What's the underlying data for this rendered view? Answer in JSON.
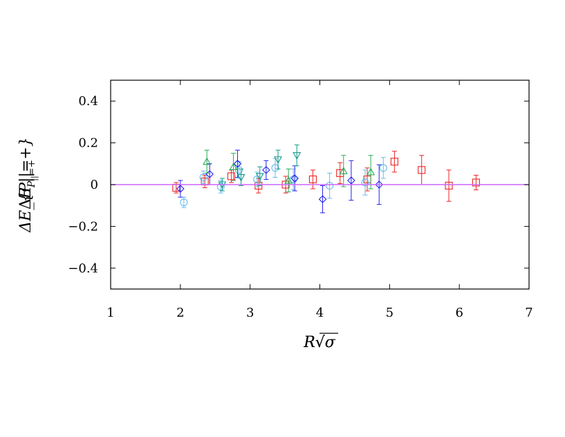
{
  "chart_data": {
    "type": "scatter",
    "title": "",
    "xlabel": "R√σ",
    "ylabel": "ΔE_{P||=+}",
    "xlim": [
      1,
      7
    ],
    "ylim": [
      -0.5,
      0.5
    ],
    "x_ticks": [
      1,
      2,
      3,
      4,
      5,
      6,
      7
    ],
    "y_ticks": [
      {
        "value": -0.4,
        "label": "−0.4"
      },
      {
        "value": -0.2,
        "label": "−0.2"
      },
      {
        "value": 0,
        "label": "0"
      },
      {
        "value": 0.2,
        "label": "0.2"
      },
      {
        "value": 0.4,
        "label": "0.4"
      }
    ],
    "grid": false,
    "reference_line": {
      "y": 0,
      "color": "#cc66ff"
    },
    "series": [
      {
        "marker": "square",
        "color": "#ee2222",
        "points": [
          {
            "x": 1.94,
            "y": -0.015,
            "err": 0.025
          },
          {
            "x": 2.35,
            "y": 0.015,
            "err": 0.03
          },
          {
            "x": 2.73,
            "y": 0.04,
            "err": 0.03
          },
          {
            "x": 3.12,
            "y": -0.005,
            "err": 0.035
          },
          {
            "x": 3.51,
            "y": 0.0,
            "err": 0.04
          },
          {
            "x": 3.9,
            "y": 0.025,
            "err": 0.045
          },
          {
            "x": 4.29,
            "y": 0.055,
            "err": 0.05
          },
          {
            "x": 4.68,
            "y": 0.025,
            "err": 0.055
          },
          {
            "x": 5.07,
            "y": 0.11,
            "err": 0.05
          },
          {
            "x": 5.46,
            "y": 0.07,
            "err": 0.07
          },
          {
            "x": 5.85,
            "y": -0.005,
            "err": 0.075
          },
          {
            "x": 6.24,
            "y": 0.01,
            "err": 0.035
          }
        ]
      },
      {
        "marker": "circle",
        "color": "#66bbee",
        "points": [
          {
            "x": 2.05,
            "y": -0.085,
            "err": 0.025
          },
          {
            "x": 2.33,
            "y": 0.035,
            "err": 0.03
          },
          {
            "x": 2.58,
            "y": -0.01,
            "err": 0.03
          },
          {
            "x": 2.84,
            "y": 0.07,
            "err": 0.04
          },
          {
            "x": 3.1,
            "y": 0.025,
            "err": 0.035
          },
          {
            "x": 3.36,
            "y": 0.08,
            "err": 0.045
          },
          {
            "x": 3.62,
            "y": 0.025,
            "err": 0.05
          },
          {
            "x": 4.14,
            "y": -0.005,
            "err": 0.06
          },
          {
            "x": 4.65,
            "y": 0.01,
            "err": 0.06
          },
          {
            "x": 4.91,
            "y": 0.08,
            "err": 0.05
          }
        ]
      },
      {
        "marker": "diamond",
        "color": "#2222ee",
        "points": [
          {
            "x": 2.0,
            "y": -0.02,
            "err": 0.04
          },
          {
            "x": 2.42,
            "y": 0.05,
            "err": 0.05
          },
          {
            "x": 2.82,
            "y": 0.1,
            "err": 0.065
          },
          {
            "x": 3.23,
            "y": 0.07,
            "err": 0.045
          },
          {
            "x": 3.64,
            "y": 0.03,
            "err": 0.06
          },
          {
            "x": 4.04,
            "y": -0.07,
            "err": 0.065
          },
          {
            "x": 4.45,
            "y": 0.02,
            "err": 0.095
          },
          {
            "x": 4.85,
            "y": 0.0,
            "err": 0.095
          }
        ]
      },
      {
        "marker": "triangle-up",
        "color": "#22aa55",
        "points": [
          {
            "x": 2.38,
            "y": 0.11,
            "err": 0.055
          },
          {
            "x": 2.76,
            "y": 0.085,
            "err": 0.065
          },
          {
            "x": 3.55,
            "y": 0.02,
            "err": 0.055
          },
          {
            "x": 4.34,
            "y": 0.065,
            "err": 0.075
          },
          {
            "x": 4.73,
            "y": 0.06,
            "err": 0.08
          }
        ]
      },
      {
        "marker": "triangle-down",
        "color": "#119988",
        "points": [
          {
            "x": 2.6,
            "y": 0.0,
            "err": 0.03
          },
          {
            "x": 2.87,
            "y": 0.035,
            "err": 0.04
          },
          {
            "x": 3.14,
            "y": 0.04,
            "err": 0.045
          },
          {
            "x": 3.4,
            "y": 0.12,
            "err": 0.045
          },
          {
            "x": 3.67,
            "y": 0.14,
            "err": 0.05
          }
        ]
      }
    ]
  }
}
